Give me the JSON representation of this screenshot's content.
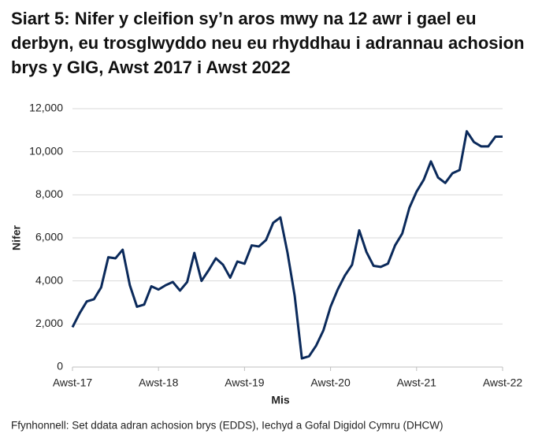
{
  "chart_data": {
    "type": "line",
    "title": "Siart 5: Nifer y cleifion sy’n aros mwy na 12 awr i gael eu derbyn, eu trosglwyddo neu eu rhyddhau i adrannau achosion brys y GIG, Awst 2017 i Awst 2022",
    "x_label": "Mis",
    "y_label": "Nifer",
    "source": "Ffynhonnell: Set ddata adran achosion brys (EDDS), Iechyd a Gofal Digidol Cymru (DHCW)",
    "categories": [
      "Awst-17",
      null,
      null,
      null,
      null,
      null,
      null,
      null,
      null,
      null,
      null,
      null,
      "Awst-18",
      null,
      null,
      null,
      null,
      null,
      null,
      null,
      null,
      null,
      null,
      null,
      "Awst-19",
      null,
      null,
      null,
      null,
      null,
      null,
      null,
      null,
      null,
      null,
      null,
      "Awst-20",
      null,
      null,
      null,
      null,
      null,
      null,
      null,
      null,
      null,
      null,
      null,
      "Awst-21",
      null,
      null,
      null,
      null,
      null,
      null,
      null,
      null,
      null,
      null,
      null,
      "Awst-22"
    ],
    "series": [
      {
        "name": "Nifer",
        "color": "#0b2a5b",
        "values": [
          1850,
          2500,
          3050,
          3150,
          3700,
          5100,
          5050,
          5450,
          3800,
          2800,
          2900,
          3750,
          3600,
          3800,
          3950,
          3550,
          3950,
          5300,
          4000,
          4500,
          5050,
          4750,
          4150,
          4900,
          4800,
          5650,
          5600,
          5900,
          6700,
          6950,
          5300,
          3300,
          400,
          500,
          1000,
          1700,
          2800,
          3600,
          4250,
          4750,
          6350,
          5350,
          4700,
          4650,
          4800,
          5650,
          6200,
          7400,
          8150,
          8700,
          9550,
          8800,
          8550,
          9000,
          9150,
          10950,
          10450,
          10250,
          10250,
          10700,
          10700
        ]
      }
    ],
    "ylim": [
      0,
      12000
    ],
    "yticks": [
      0,
      {
        "value": 2000,
        "label": "2,000"
      },
      {
        "value": 4000,
        "label": "4,000"
      },
      {
        "value": 6000,
        "label": "6,000"
      },
      {
        "value": 8000,
        "label": "8,000"
      },
      {
        "value": 10000,
        "label": "10,000"
      },
      {
        "value": 12000,
        "label": "12,000"
      }
    ],
    "grid": true
  }
}
